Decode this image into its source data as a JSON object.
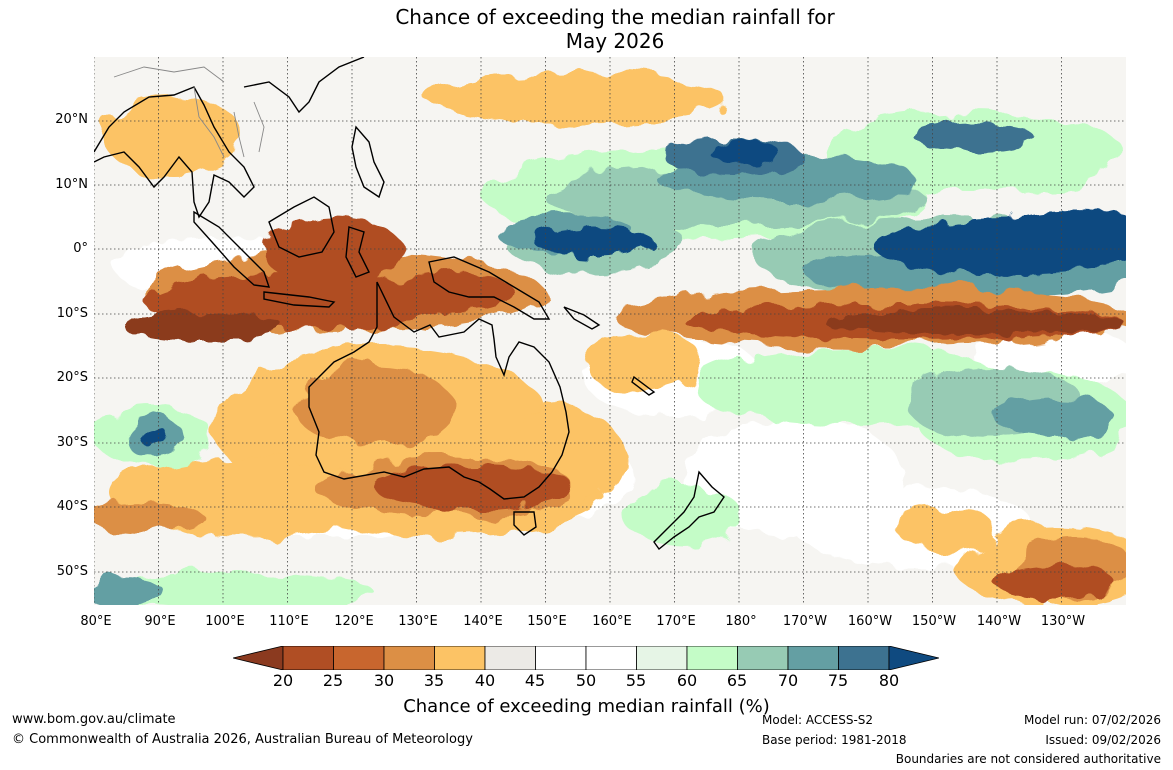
{
  "title_line1": "Chance of exceeding the median rainfall for",
  "title_line2": "May 2026",
  "map": {
    "region": "Australia and western Pacific",
    "lat_labels": [
      "20°N",
      "10°N",
      "0°",
      "10°S",
      "20°S",
      "30°S",
      "40°S",
      "50°S"
    ],
    "lon_labels": [
      "80°E",
      "90°E",
      "100°E",
      "110°E",
      "120°E",
      "130°E",
      "140°E",
      "150°E",
      "160°E",
      "170°E",
      "180°",
      "170°W",
      "160°W",
      "150°W",
      "140°W",
      "130°W"
    ]
  },
  "colorbar": {
    "ticks": [
      "20",
      "25",
      "30",
      "35",
      "40",
      "45",
      "50",
      "55",
      "60",
      "65",
      "70",
      "75",
      "80"
    ],
    "colors": [
      "#8b3a1f",
      "#b04e24",
      "#c8662e",
      "#dc8f45",
      "#fcc365",
      "#eceae6",
      "#ffffff",
      "#ffffff",
      "#e6f5e6",
      "#c4fcc7",
      "#97cbb4",
      "#649fa3",
      "#3d7290",
      "#0f4a80"
    ],
    "label": "Chance of exceeding median rainfall (%)"
  },
  "footer": {
    "website": "www.bom.gov.au/climate",
    "copyright": "© Commonwealth of Australia 2026, Australian Bureau of Meteorology",
    "model": "Model: ACCESS-S2",
    "base_period": "Base period: 1981-2018",
    "model_run": "Model run: 07/02/2026",
    "issued": "Issued: 09/02/2026",
    "disclaimer": "Boundaries are not considered authoritative"
  }
}
